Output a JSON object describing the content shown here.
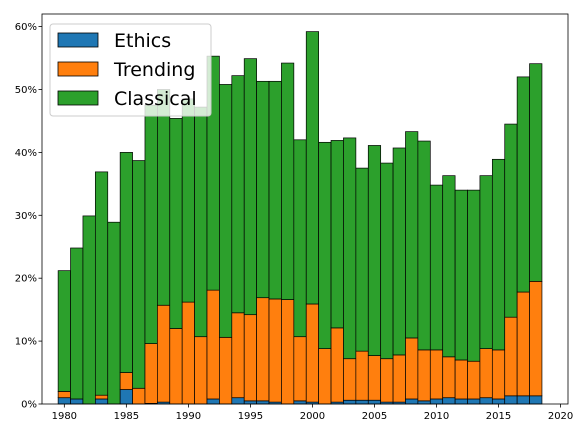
{
  "chart_data": {
    "type": "bar",
    "stacked": true,
    "x": [
      1980,
      1981,
      1982,
      1983,
      1984,
      1985,
      1986,
      1987,
      1988,
      1989,
      1990,
      1991,
      1992,
      1993,
      1994,
      1995,
      1996,
      1997,
      1998,
      1999,
      2000,
      2001,
      2002,
      2003,
      2004,
      2005,
      2006,
      2007,
      2008,
      2009,
      2010,
      2011,
      2012,
      2013,
      2014,
      2015,
      2016,
      2017,
      2018
    ],
    "series": [
      {
        "name": "Ethics",
        "color": "#1f77b4",
        "values": [
          1.0,
          0.8,
          0.0,
          0.8,
          0.0,
          2.3,
          0.0,
          0.1,
          0.3,
          0.0,
          0.0,
          0.0,
          0.8,
          0.0,
          1.0,
          0.5,
          0.5,
          0.3,
          0.0,
          0.5,
          0.3,
          0.0,
          0.3,
          0.6,
          0.6,
          0.6,
          0.3,
          0.3,
          0.8,
          0.5,
          0.8,
          1.0,
          0.8,
          0.8,
          1.0,
          0.8,
          1.3,
          1.3,
          1.3
        ]
      },
      {
        "name": "Trending",
        "color": "#ff7f0e",
        "values": [
          1.0,
          0.0,
          0.0,
          0.6,
          0.0,
          2.7,
          2.5,
          9.5,
          15.4,
          12.0,
          16.2,
          10.7,
          17.3,
          10.6,
          13.5,
          13.7,
          16.4,
          16.4,
          16.6,
          10.2,
          15.6,
          8.8,
          11.8,
          6.6,
          7.8,
          7.1,
          6.9,
          7.5,
          9.7,
          8.1,
          7.8,
          6.5,
          6.2,
          6.0,
          7.8,
          7.8,
          12.5,
          16.5,
          18.2
        ]
      },
      {
        "name": "Classical",
        "color": "#2ca02c",
        "values": [
          19.2,
          24.0,
          29.9,
          35.5,
          28.9,
          35.0,
          36.2,
          37.9,
          34.3,
          33.4,
          32.3,
          36.5,
          37.2,
          40.2,
          37.7,
          40.7,
          34.4,
          34.6,
          37.6,
          31.3,
          43.3,
          32.8,
          29.8,
          35.1,
          29.1,
          33.4,
          31.1,
          32.9,
          32.8,
          33.2,
          26.2,
          28.8,
          27.0,
          27.2,
          27.5,
          30.3,
          30.7,
          34.2,
          34.6
        ]
      }
    ],
    "xticks": [
      "1980",
      "1985",
      "1990",
      "1995",
      "2000",
      "2005",
      "2010",
      "2015",
      "2020"
    ],
    "yticks": [
      "0%",
      "10%",
      "20%",
      "30%",
      "40%",
      "50%",
      "60%"
    ],
    "xlim": [
      1978.2,
      2020.6
    ],
    "ylim": [
      0,
      62
    ],
    "title": "",
    "xlabel": "",
    "ylabel": "",
    "legend_position": "top-left",
    "grid": false
  }
}
